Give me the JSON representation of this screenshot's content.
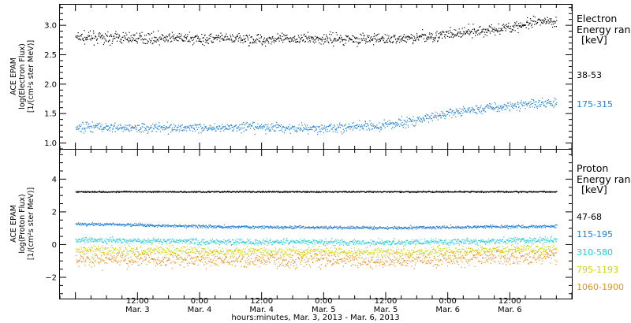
{
  "chart_data": [
    {
      "type": "scatter",
      "panel": "electron",
      "ylabel_lines": [
        "ACE EPAM",
        "log(Electron Flux)",
        "[1/(cm²s ster MeV)]"
      ],
      "ylim": [
        0.9,
        3.35
      ],
      "yticks": [
        1.0,
        1.5,
        2.0,
        2.5,
        3.0
      ],
      "ytick_labels": [
        "1.0",
        "1.5",
        "2.0",
        "2.5",
        "3.0"
      ],
      "legend": {
        "title_lines": [
          "Electron",
          "Energy ran",
          "[keV]"
        ],
        "placement": "right"
      },
      "series": [
        {
          "name": "38-53",
          "color": "#000000",
          "scatter": 0.09,
          "x": [
            0,
            12,
            24,
            36,
            48,
            60,
            66,
            72,
            78,
            82,
            86,
            90,
            93
          ],
          "y": [
            2.8,
            2.79,
            2.78,
            2.77,
            2.78,
            2.77,
            2.8,
            2.85,
            2.9,
            2.95,
            3.0,
            3.06,
            3.07
          ]
        },
        {
          "name": "175-315",
          "color": "#1f7fd6",
          "scatter": 0.08,
          "x": [
            0,
            12,
            24,
            36,
            48,
            58,
            64,
            70,
            76,
            82,
            86,
            90,
            93
          ],
          "y": [
            1.28,
            1.27,
            1.27,
            1.27,
            1.26,
            1.29,
            1.36,
            1.47,
            1.57,
            1.62,
            1.65,
            1.69,
            1.7
          ]
        }
      ]
    },
    {
      "type": "scatter",
      "panel": "proton",
      "ylabel_lines": [
        "ACE EPAM",
        "log(Proton Flux)",
        "[1/(cm²s ster MeV)]"
      ],
      "ylim": [
        -3.3,
        5.8
      ],
      "yticks": [
        -2,
        0,
        2,
        4
      ],
      "ytick_labels": [
        "−2",
        "0",
        "2",
        "4"
      ],
      "legend": {
        "title_lines": [
          "Proton",
          "Energy ran",
          "[keV]"
        ],
        "placement": "right"
      },
      "series": [
        {
          "name": "47-68",
          "color": "#000000",
          "scatter": 0.04,
          "x": [
            0,
            93
          ],
          "y": [
            3.25,
            3.25
          ]
        },
        {
          "name": "115-195",
          "color": "#1f7fd6",
          "scatter": 0.09,
          "x": [
            0,
            30,
            60,
            93
          ],
          "y": [
            1.3,
            1.1,
            1.05,
            1.15
          ]
        },
        {
          "name": "310-580",
          "color": "#22ccd6",
          "scatter": 0.18,
          "x": [
            0,
            30,
            60,
            93
          ],
          "y": [
            0.3,
            0.2,
            0.15,
            0.3
          ]
        },
        {
          "name": "795-1193",
          "color": "#d2d200",
          "scatter": 0.28,
          "x": [
            0,
            30,
            60,
            93
          ],
          "y": [
            -0.3,
            -0.4,
            -0.45,
            -0.2
          ]
        },
        {
          "name": "1060-1900",
          "color": "#e8911a",
          "scatter": 0.45,
          "x": [
            0,
            30,
            60,
            93
          ],
          "y": [
            -0.85,
            -0.9,
            -0.95,
            -0.7
          ]
        }
      ]
    }
  ],
  "x_axis": {
    "range_hours": [
      -3,
      96
    ],
    "ticks": [
      {
        "x": 12,
        "time": "12:00",
        "date": "Mar. 3"
      },
      {
        "x": 24,
        "time": "0:00",
        "date": "Mar. 4"
      },
      {
        "x": 36,
        "time": "12:00",
        "date": "Mar. 4"
      },
      {
        "x": 48,
        "time": "0:00",
        "date": "Mar. 5"
      },
      {
        "x": 60,
        "time": "12:00",
        "date": "Mar. 5"
      },
      {
        "x": 72,
        "time": "0:00",
        "date": "Mar. 6"
      },
      {
        "x": 84,
        "time": "12:00",
        "date": "Mar. 6"
      }
    ],
    "label": "hours:minutes, Mar.  3, 2013 - Mar.  6, 2013"
  }
}
